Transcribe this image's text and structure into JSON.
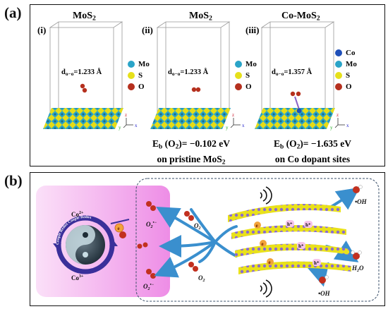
{
  "panel_a": {
    "label": "(a)",
    "cells": [
      {
        "title_main": "MoS",
        "title_sub": "2",
        "roman": "(i)",
        "dist_main": "d",
        "dist_sub": "o−o",
        "dist_val": "=1.233 Å",
        "legend": [
          {
            "text": "Mo",
            "color": "#2aa4c8"
          },
          {
            "text": "S",
            "color": "#e6e01a"
          },
          {
            "text": "O",
            "color": "#b5301e"
          }
        ]
      },
      {
        "title_main": "MoS",
        "title_sub": "2",
        "roman": "(ii)",
        "dist_main": "d",
        "dist_sub": "o−o",
        "dist_val": "=1.233 Å",
        "legend": [
          {
            "text": "Mo",
            "color": "#2aa4c8"
          },
          {
            "text": "S",
            "color": "#e6e01a"
          },
          {
            "text": "O",
            "color": "#b5301e"
          }
        ]
      },
      {
        "title_main": "Co-MoS",
        "title_sub": "2",
        "roman": "(iii)",
        "dist_main": "d",
        "dist_sub": "o−o",
        "dist_val": "=1.357 Å",
        "legend": [
          {
            "text": "Co",
            "color": "#1f4fb8"
          },
          {
            "text": "Mo",
            "color": "#2aa4c8"
          },
          {
            "text": "S",
            "color": "#e6e01a"
          },
          {
            "text": "O",
            "color": "#b5301e"
          }
        ]
      }
    ],
    "energies": [
      {
        "e_main": "E",
        "e_sub": "b",
        "e_val": " (O",
        "e_o2sub": "2",
        "e_rest": ")= −0.102 eV",
        "line2_main": "on pristine MoS",
        "line2_sub": "2"
      },
      {
        "e_main": "E",
        "e_sub": "b",
        "e_val": " (O",
        "e_o2sub": "2",
        "e_rest": ")= −1.635 eV",
        "line2_main": "on Co dopant sites",
        "line2_sub": ""
      }
    ],
    "axis": {
      "z": "z",
      "y": "y",
      "x": "x"
    }
  },
  "panel_b": {
    "label": "(b)",
    "co2": "Co",
    "co2_sup": "2+",
    "co3": "Co",
    "co3_sup": "3+",
    "ring_text": "Couple Redox Couple Redox",
    "o2_main": "O",
    "o2_sub": "2",
    "o2rad_main": "O",
    "o2rad_sub": "2",
    "o2rad_sup": "•−",
    "oh": "•OH",
    "h2o_main": "H",
    "h2o_sub": "2",
    "h2o_rest": "O",
    "hole": "h⁺",
    "electron": "e",
    "colors": {
      "pink": "#f2a6ef",
      "arrow": "#3a8fce",
      "ring": "#3a2f9a",
      "oxygen": "#c2301f"
    }
  }
}
